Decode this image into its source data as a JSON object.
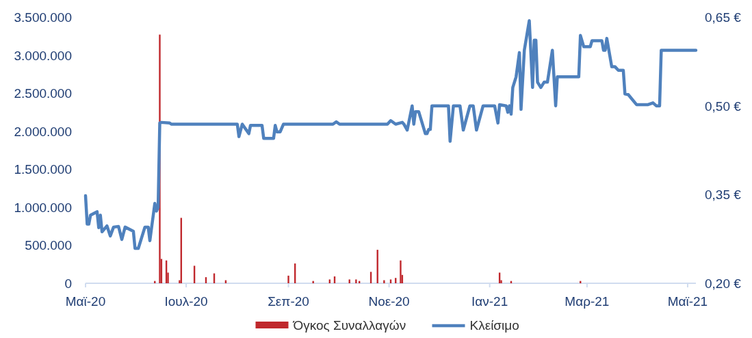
{
  "chart_data": {
    "type": "bar",
    "xlim": [
      "2020-05-01",
      "2021-05-06"
    ],
    "xticks": [
      {
        "value": "2020-05-01",
        "label": "Μαϊ-20"
      },
      {
        "value": "2020-07-01",
        "label": "Ιουλ-20"
      },
      {
        "value": "2020-09-01",
        "label": "Σεπ-20"
      },
      {
        "value": "2020-11-01",
        "label": "Νοε-20"
      },
      {
        "value": "2021-01-01",
        "label": "Ιαν-21"
      },
      {
        "value": "2021-03-01",
        "label": "Μαρ-21"
      },
      {
        "value": "2021-05-01",
        "label": "Μαϊ-21"
      }
    ],
    "ylim": [
      0,
      3500000
    ],
    "yticks": [
      {
        "value": 0,
        "label": "0"
      },
      {
        "value": 500000,
        "label": "500.000"
      },
      {
        "value": 1000000,
        "label": "1.000.000"
      },
      {
        "value": 1500000,
        "label": "1.500.000"
      },
      {
        "value": 2000000,
        "label": "2.000.000"
      },
      {
        "value": 2500000,
        "label": "2.500.000"
      },
      {
        "value": 3000000,
        "label": "3.000.000"
      },
      {
        "value": 3500000,
        "label": "3.500.000"
      }
    ],
    "y2lim": [
      0.2,
      0.65
    ],
    "y2ticks": [
      {
        "value": 0.2,
        "label": "0,20 €"
      },
      {
        "value": 0.35,
        "label": "0,35 €"
      },
      {
        "value": 0.5,
        "label": "0,50 €"
      },
      {
        "value": 0.65,
        "label": "0,65 €"
      }
    ],
    "legend": "bottom",
    "series": [
      {
        "name": "Όγκος Συναλλαγών",
        "color": "#c0282d",
        "x": [
          "2020-06-12",
          "2020-06-15",
          "2020-06-16",
          "2020-06-19",
          "2020-06-20",
          "2020-06-27",
          "2020-06-28",
          "2020-07-06",
          "2020-07-13",
          "2020-07-18",
          "2020-07-25",
          "2020-09-01",
          "2020-09-05",
          "2020-09-16",
          "2020-09-26",
          "2020-09-29",
          "2020-10-08",
          "2020-10-12",
          "2020-10-14",
          "2020-10-21",
          "2020-10-25",
          "2020-10-29",
          "2020-11-02",
          "2020-11-05",
          "2020-11-08",
          "2020-11-09",
          "2021-01-07",
          "2021-01-08",
          "2021-01-14",
          "2021-02-25"
        ],
        "values": [
          30000,
          3270000,
          320000,
          300000,
          140000,
          40000,
          860000,
          230000,
          80000,
          130000,
          40000,
          100000,
          260000,
          30000,
          50000,
          90000,
          50000,
          50000,
          30000,
          150000,
          440000,
          40000,
          50000,
          70000,
          300000,
          110000,
          140000,
          40000,
          30000,
          30000
        ]
      },
      {
        "name": "Κλείσιμο",
        "type": "line",
        "axis": "y2",
        "color": "#4f81bd",
        "x": [
          "2020-05-01",
          "2020-05-02",
          "2020-05-03",
          "2020-05-04",
          "2020-05-08",
          "2020-05-09",
          "2020-05-10",
          "2020-05-11",
          "2020-05-14",
          "2020-05-16",
          "2020-05-18",
          "2020-05-21",
          "2020-05-23",
          "2020-05-25",
          "2020-05-30",
          "2020-05-31",
          "2020-06-02",
          "2020-06-06",
          "2020-06-08",
          "2020-06-09",
          "2020-06-12",
          "2020-06-13",
          "2020-06-14",
          "2020-06-15",
          "2020-06-16",
          "2020-06-21",
          "2020-06-22",
          "2020-08-01",
          "2020-08-02",
          "2020-08-04",
          "2020-08-08",
          "2020-08-09",
          "2020-08-16",
          "2020-08-17",
          "2020-08-23",
          "2020-08-24",
          "2020-08-25",
          "2020-08-27",
          "2020-08-29",
          "2020-09-28",
          "2020-09-30",
          "2020-10-02",
          "2020-10-31",
          "2020-11-02",
          "2020-11-05",
          "2020-11-09",
          "2020-11-10",
          "2020-11-12",
          "2020-11-15",
          "2020-11-16",
          "2020-11-17",
          "2020-11-19",
          "2020-11-23",
          "2020-11-24",
          "2020-11-25",
          "2020-11-26",
          "2020-11-27",
          "2020-12-07",
          "2020-12-08",
          "2020-12-10",
          "2020-12-14",
          "2020-12-16",
          "2020-12-20",
          "2020-12-22",
          "2020-12-24",
          "2020-12-28",
          "2021-01-04",
          "2021-01-06",
          "2021-01-07",
          "2021-01-11",
          "2021-01-12",
          "2021-01-13",
          "2021-01-14",
          "2021-01-15",
          "2021-01-17",
          "2021-01-19",
          "2021-01-20",
          "2021-01-22",
          "2021-01-25",
          "2021-01-27",
          "2021-01-28",
          "2021-01-29",
          "2021-01-30",
          "2021-02-01",
          "2021-02-03",
          "2021-02-05",
          "2021-02-08",
          "2021-02-10",
          "2021-02-11",
          "2021-02-24",
          "2021-02-25",
          "2021-02-27",
          "2021-03-03",
          "2021-03-04",
          "2021-03-10",
          "2021-03-11",
          "2021-03-12",
          "2021-03-13",
          "2021-03-16",
          "2021-03-18",
          "2021-03-20",
          "2021-03-23",
          "2021-03-24",
          "2021-03-26",
          "2021-03-31",
          "2021-04-04",
          "2021-04-07",
          "2021-04-10",
          "2021-04-12",
          "2021-04-14",
          "2021-04-15",
          "2021-05-06"
        ],
        "values": [
          0.348,
          0.3,
          0.3,
          0.315,
          0.321,
          0.294,
          0.315,
          0.287,
          0.297,
          0.28,
          0.295,
          0.296,
          0.274,
          0.295,
          0.288,
          0.259,
          0.259,
          0.295,
          0.295,
          0.272,
          0.335,
          0.322,
          0.328,
          0.471,
          0.472,
          0.471,
          0.469,
          0.469,
          0.448,
          0.469,
          0.453,
          0.467,
          0.467,
          0.445,
          0.445,
          0.467,
          0.456,
          0.456,
          0.469,
          0.469,
          0.473,
          0.469,
          0.469,
          0.475,
          0.469,
          0.472,
          0.469,
          0.459,
          0.5,
          0.469,
          0.49,
          0.49,
          0.453,
          0.453,
          0.46,
          0.46,
          0.5,
          0.5,
          0.44,
          0.5,
          0.5,
          0.459,
          0.5,
          0.5,
          0.459,
          0.5,
          0.5,
          0.471,
          0.502,
          0.5,
          0.489,
          0.5,
          0.486,
          0.531,
          0.549,
          0.59,
          0.494,
          0.594,
          0.644,
          0.531,
          0.611,
          0.611,
          0.54,
          0.531,
          0.54,
          0.54,
          0.594,
          0.5,
          0.549,
          0.549,
          0.619,
          0.6,
          0.6,
          0.61,
          0.61,
          0.594,
          0.594,
          0.614,
          0.566,
          0.566,
          0.56,
          0.56,
          0.52,
          0.519,
          0.502,
          0.502,
          0.502,
          0.505,
          0.5,
          0.5,
          0.594,
          0.594
        ]
      }
    ]
  }
}
